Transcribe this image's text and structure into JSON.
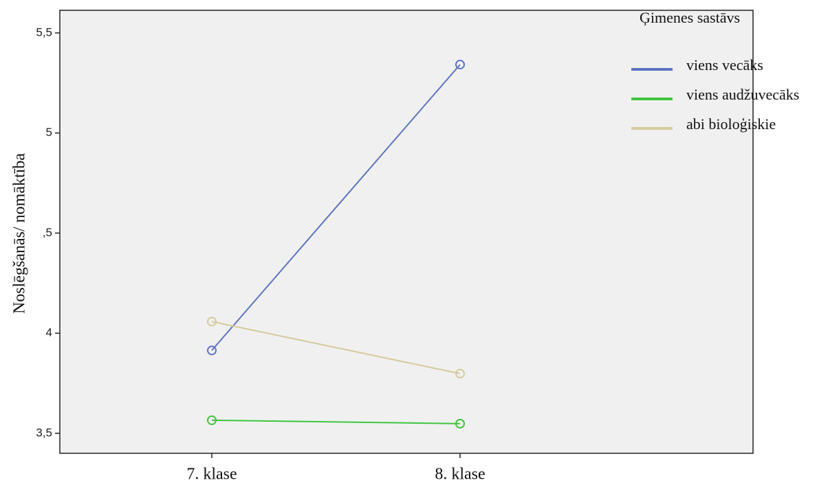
{
  "chart_data": {
    "type": "line",
    "y_label": "Noslēgšanās/ nomāktība",
    "categories": [
      "7. klase",
      "8. klase"
    ],
    "series": [
      {
        "name": "viens vecāks",
        "color": "#5b73c4",
        "values": [
          3.914,
          5.342
        ]
      },
      {
        "name": "viens audžuvecāks",
        "color": "#3ec43e",
        "values": [
          3.565,
          3.548
        ]
      },
      {
        "name": "abi bioloģiskie",
        "color": "#d6ca9c",
        "values": [
          4.058,
          3.798
        ]
      }
    ],
    "legend_title": "Ģimenes sastāvs",
    "legend": "right",
    "ylim": [
      3.4,
      5.613
    ],
    "yticks": [
      {
        "value": 3.5,
        "label": "3,5"
      },
      4,
      {
        "value": 4.5,
        "label": ",5"
      },
      5,
      {
        "value": 5.5,
        "label": "5,5"
      }
    ],
    "markers": "open-circle"
  }
}
